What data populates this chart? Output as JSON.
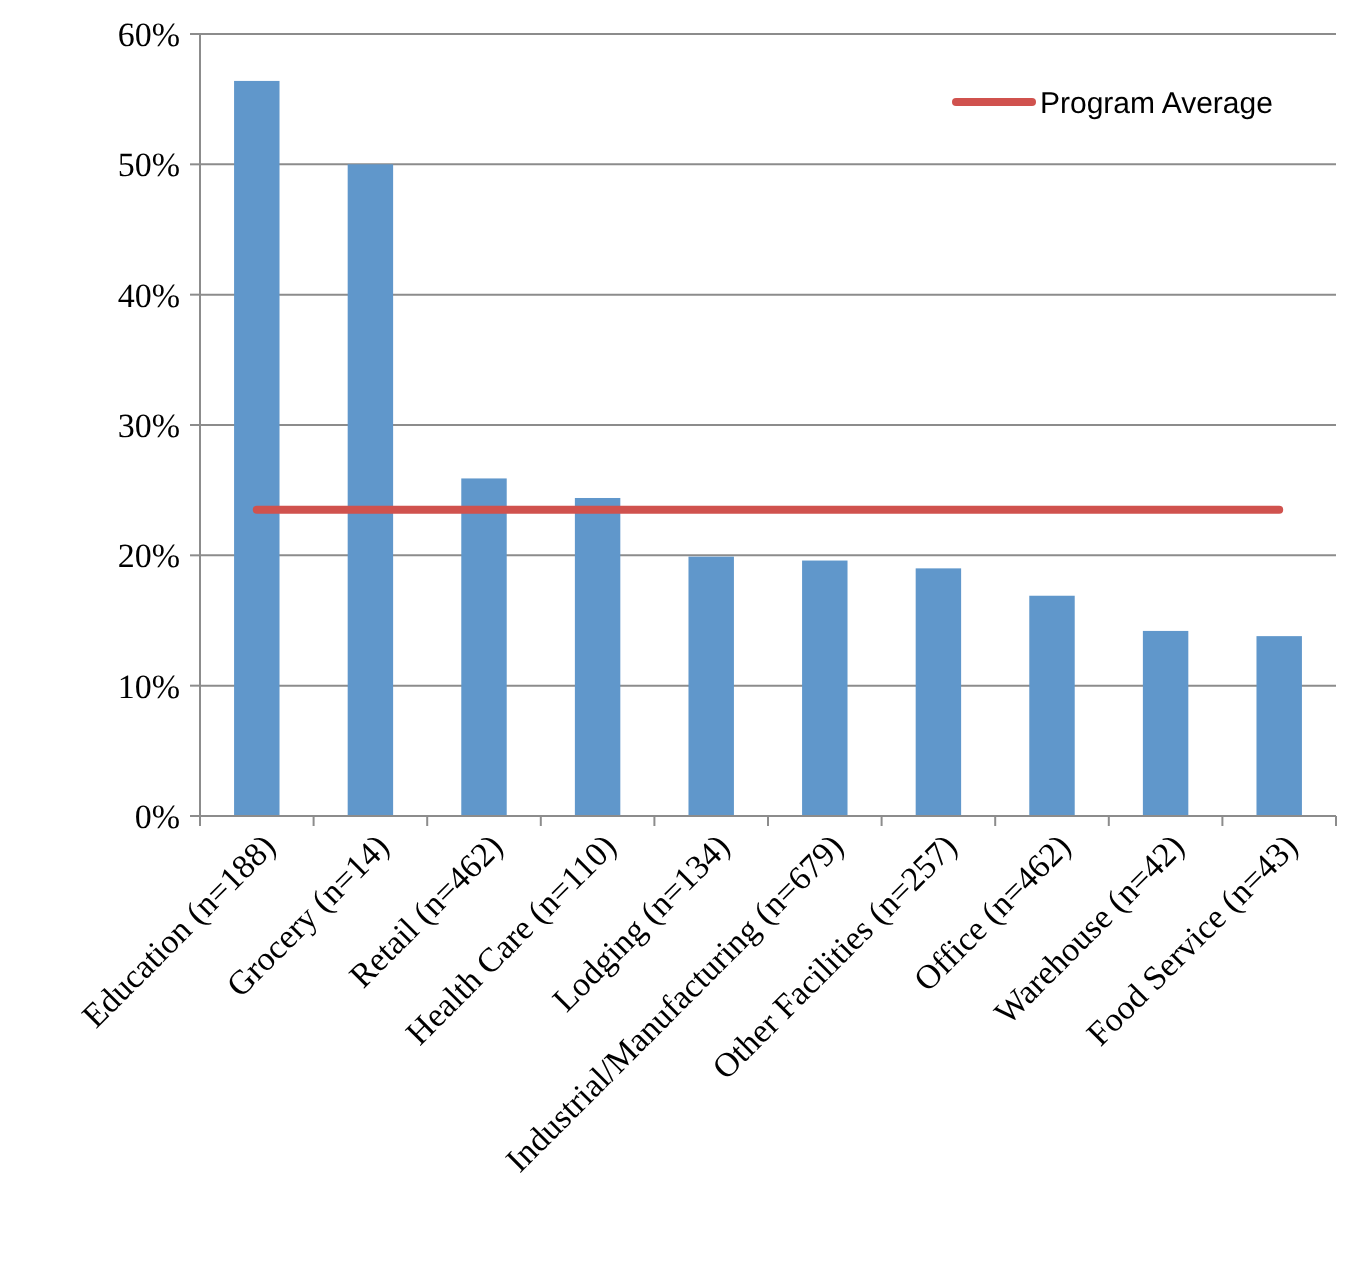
{
  "chart_data": {
    "type": "bar",
    "categories": [
      "Education (n=188)",
      "Grocery (n=14)",
      "Retail (n=462)",
      "Health Care (n=110)",
      "Lodging (n=134)",
      "Industrial/Manufacturing (n=679)",
      "Other Facilities (n=257)",
      "Office (n=462)",
      "Warehouse (n=42)",
      "Food Service (n=43)"
    ],
    "series": [
      {
        "color": "#6097cb",
        "values": [
          56.4,
          50,
          25.9,
          24.4,
          19.9,
          19.6,
          19.0,
          16.9,
          14.2,
          13.8
        ]
      },
      {
        "type": "line",
        "name": "Program Average",
        "color": "#d0524e",
        "values": [
          23.5,
          23.5,
          23.5,
          23.5,
          23.5,
          23.5,
          23.5,
          23.5,
          23.5,
          23.5
        ]
      }
    ],
    "ylim": [
      0,
      60
    ],
    "yticks": [
      {
        "value": 0,
        "label": "0%"
      },
      {
        "value": 10,
        "label": "10%"
      },
      {
        "value": 20,
        "label": "20%"
      },
      {
        "value": 30,
        "label": "30%"
      },
      {
        "value": 40,
        "label": "40%"
      },
      {
        "value": 50,
        "label": "50%"
      },
      {
        "value": 60,
        "label": "60%"
      }
    ],
    "grid": "y",
    "legend": "top right",
    "marker": "none"
  }
}
